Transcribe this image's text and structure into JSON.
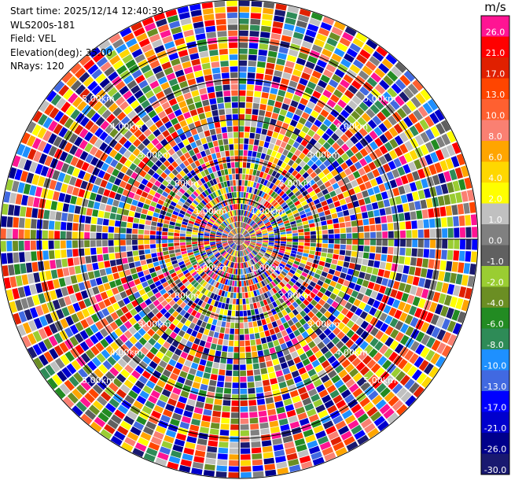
{
  "info": {
    "start_time": "Start time: 2025/12/14 12:40:39",
    "device": "WLS200s-181",
    "field": "Field: VEL",
    "elevation": "Elevation(deg): 35.00",
    "nrays": "NRays: 120"
  },
  "colorbar": {
    "unit": "m/s",
    "levels": [
      {
        "label": "26.0",
        "color": "#ff1493"
      },
      {
        "label": "21.0",
        "color": "#ff0000"
      },
      {
        "label": "17.0",
        "color": "#e02000"
      },
      {
        "label": "13.0",
        "color": "#ff4500"
      },
      {
        "label": "10.0",
        "color": "#ff6030"
      },
      {
        "label": "8.0",
        "color": "#fa8072"
      },
      {
        "label": "6.0",
        "color": "#ffa500"
      },
      {
        "label": "4.0",
        "color": "#ffd700"
      },
      {
        "label": "2.0",
        "color": "#ffff00"
      },
      {
        "label": "1.0",
        "color": "#c0c0c0"
      },
      {
        "label": "0.0",
        "color": "#808080"
      },
      {
        "label": "-1.0",
        "color": "#606060"
      },
      {
        "label": "-2.0",
        "color": "#9acd32"
      },
      {
        "label": "-4.0",
        "color": "#6b8e23"
      },
      {
        "label": "-6.0",
        "color": "#228b22"
      },
      {
        "label": "-8.0",
        "color": "#2e8b57"
      },
      {
        "label": "-10.0",
        "color": "#1e90ff"
      },
      {
        "label": "-13.0",
        "color": "#4169e1"
      },
      {
        "label": "-17.0",
        "color": "#0000ff"
      },
      {
        "label": "-21.0",
        "color": "#0000cd"
      },
      {
        "label": "-26.0",
        "color": "#00008b"
      },
      {
        "label": "-30.0",
        "color": "#191970"
      }
    ]
  },
  "chart_data": {
    "type": "heatmap",
    "projection": "polar-ppi",
    "field": "VEL",
    "rays": 120,
    "max_range_km": 6.0,
    "range_ring_labels": [
      "1.00km",
      "2.00km",
      "3.00km",
      "4.00km",
      "5.00km"
    ],
    "range_rings_km": [
      1,
      2,
      3,
      4,
      5,
      6
    ],
    "spokes_deg": [
      0,
      90,
      180,
      270
    ]
  }
}
